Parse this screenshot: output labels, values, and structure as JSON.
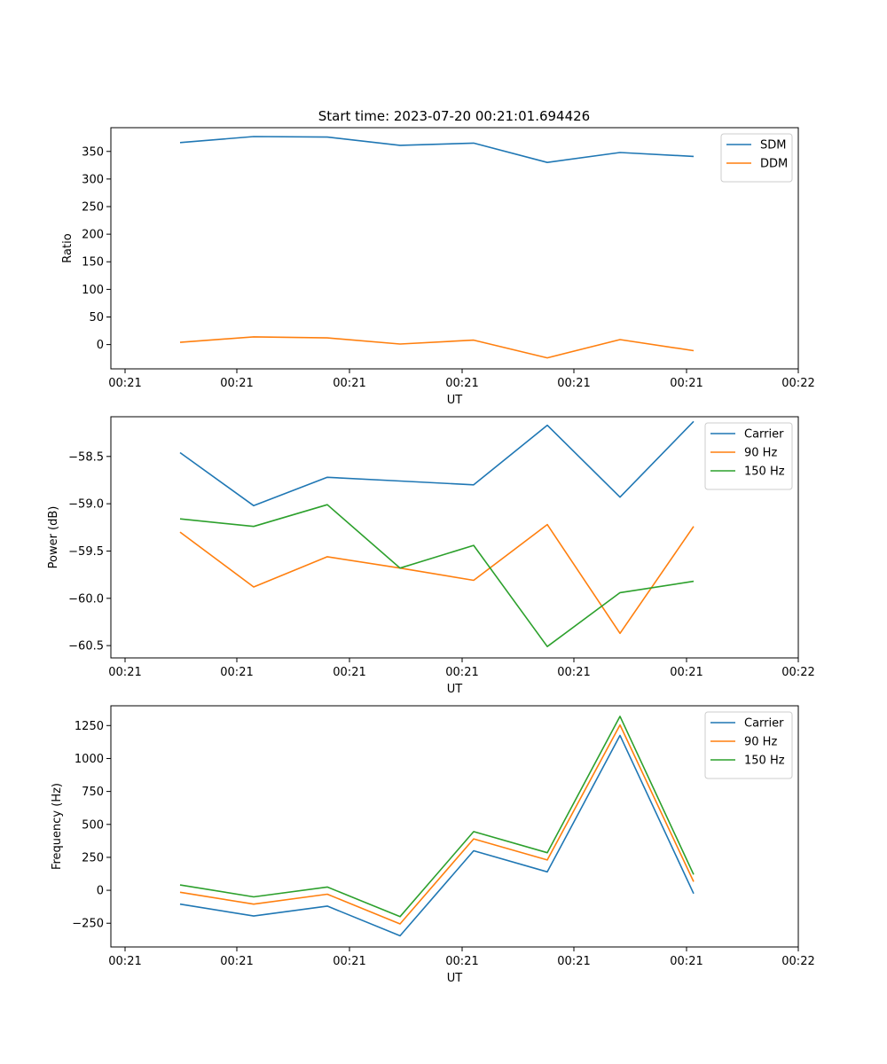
{
  "figure_title": "Start time: 2023-07-20 00:21:01.694426",
  "chart_data": [
    {
      "type": "line",
      "xlabel": "UT",
      "ylabel": "Ratio",
      "x_tick_labels": [
        "00:21",
        "00:21",
        "00:21",
        "00:21",
        "00:21",
        "00:21",
        "00:22"
      ],
      "y_ticks": [
        0,
        50,
        100,
        150,
        200,
        250,
        300,
        350
      ],
      "ylim": [
        -44,
        393
      ],
      "series": [
        {
          "name": "SDM",
          "color": "#1f77b4",
          "values": [
            366,
            377,
            376,
            361,
            365,
            330,
            348,
            341
          ]
        },
        {
          "name": "DDM",
          "color": "#ff7f0e",
          "values": [
            4,
            14,
            12,
            1,
            8,
            -24,
            9,
            -11
          ]
        }
      ]
    },
    {
      "type": "line",
      "xlabel": "UT",
      "ylabel": "Power (dB)",
      "x_tick_labels": [
        "00:21",
        "00:21",
        "00:21",
        "00:21",
        "00:21",
        "00:21",
        "00:22"
      ],
      "y_ticks": [
        -60.5,
        -60.0,
        -59.5,
        -59.0,
        -58.5
      ],
      "y_tick_labels": [
        "−60.5",
        "−60.0",
        "−59.5",
        "−59.0",
        "−58.5"
      ],
      "ylim": [
        -60.63,
        -58.08
      ],
      "series": [
        {
          "name": "Carrier",
          "color": "#1f77b4",
          "values": [
            -58.46,
            -59.02,
            -58.72,
            -58.76,
            -58.8,
            -58.17,
            -58.93,
            -58.13
          ]
        },
        {
          "name": "90 Hz",
          "color": "#ff7f0e",
          "values": [
            -59.3,
            -59.88,
            -59.56,
            -59.68,
            -59.81,
            -59.22,
            -60.37,
            -59.24
          ]
        },
        {
          "name": "150 Hz",
          "color": "#2ca02c",
          "values": [
            -59.16,
            -59.24,
            -59.01,
            -59.68,
            -59.44,
            -60.51,
            -59.94,
            -59.82
          ]
        }
      ]
    },
    {
      "type": "line",
      "xlabel": "UT",
      "ylabel": "Frequency (Hz)",
      "x_tick_labels": [
        "00:21",
        "00:21",
        "00:21",
        "00:21",
        "00:21",
        "00:21",
        "00:22"
      ],
      "y_ticks": [
        -250,
        0,
        250,
        500,
        750,
        1000,
        1250
      ],
      "y_tick_labels": [
        "−250",
        "0",
        "250",
        "500",
        "750",
        "1000",
        "1250"
      ],
      "ylim": [
        -430,
        1400
      ],
      "series": [
        {
          "name": "Carrier",
          "color": "#1f77b4",
          "values": [
            -105,
            -195,
            -120,
            -345,
            300,
            140,
            1175,
            -25
          ]
        },
        {
          "name": "90 Hz",
          "color": "#ff7f0e",
          "values": [
            -15,
            -105,
            -30,
            -255,
            390,
            230,
            1255,
            65
          ]
        },
        {
          "name": "150 Hz",
          "color": "#2ca02c",
          "values": [
            40,
            -50,
            25,
            -200,
            445,
            285,
            1320,
            120
          ]
        }
      ]
    }
  ]
}
